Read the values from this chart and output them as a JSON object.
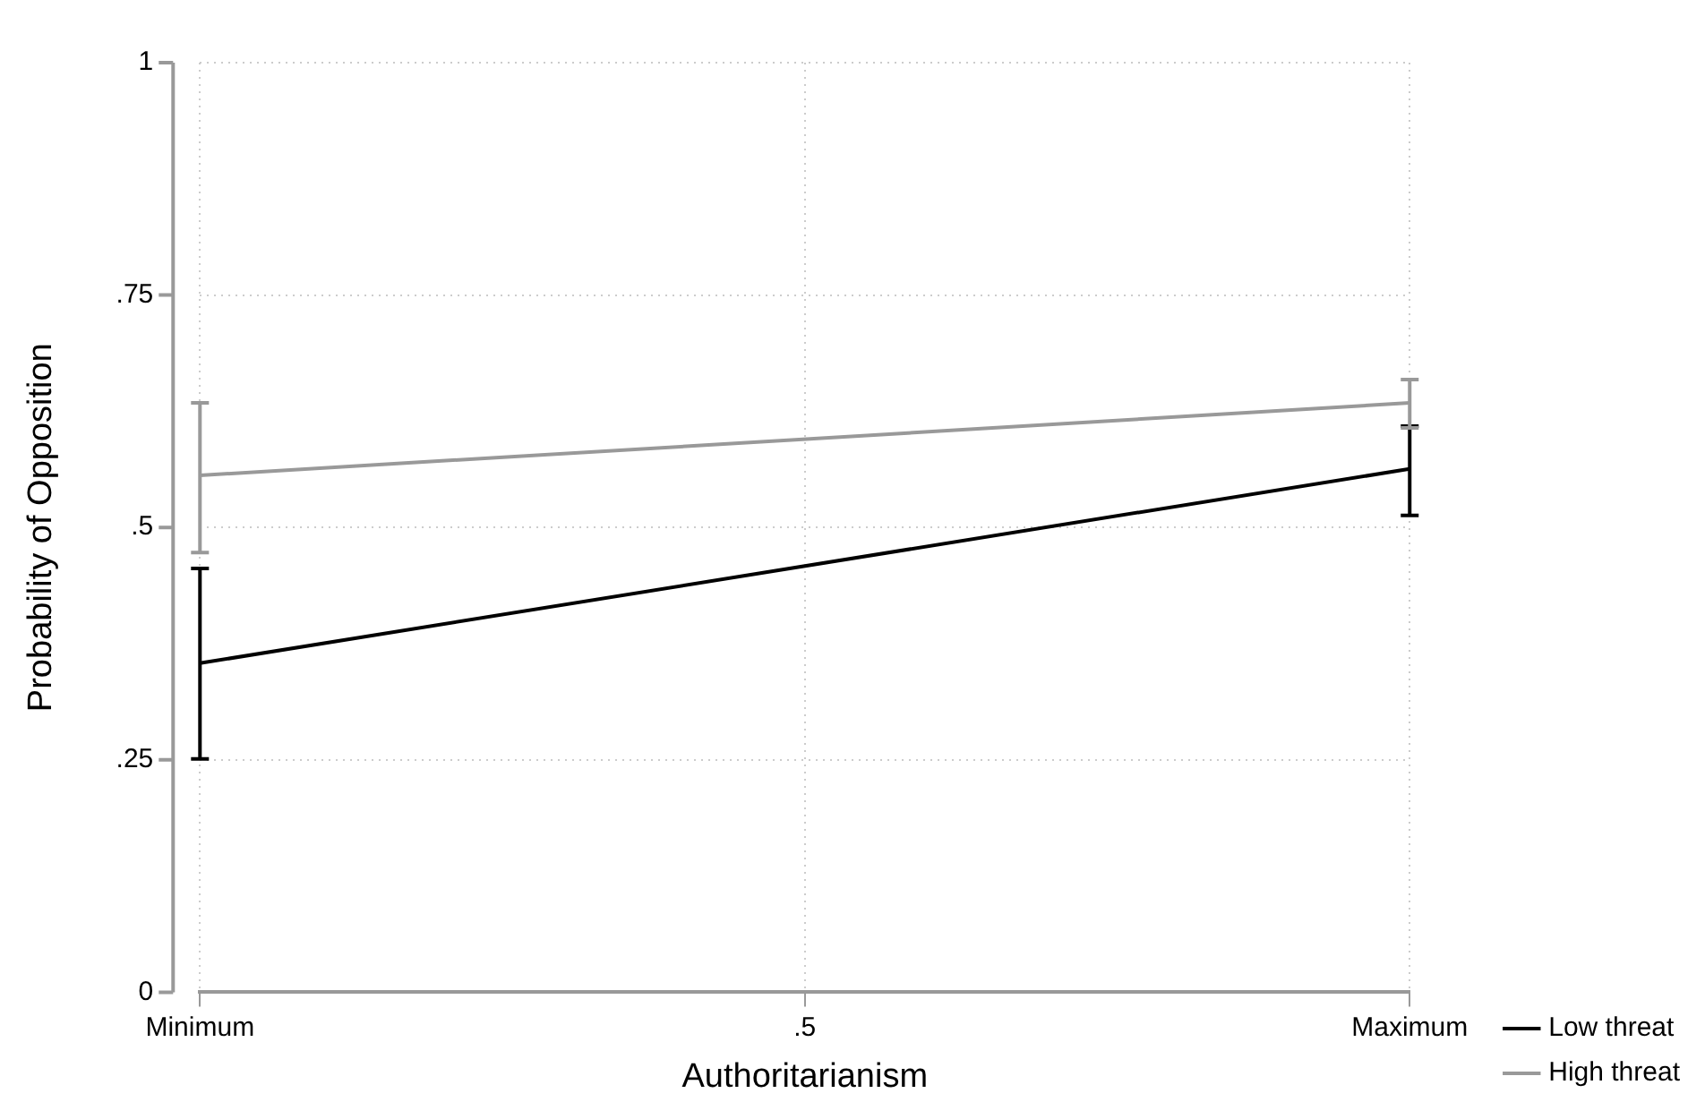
{
  "chart_data": {
    "type": "line",
    "xlabel": "Authoritarianism",
    "ylabel": "Probability of Opposition",
    "categories": [
      "Minimum",
      ".5",
      "Maximum"
    ],
    "series": [
      {
        "name": "Low threat",
        "color": "#000000",
        "values": [
          0.354,
          null,
          0.563
        ],
        "errors": [
          [
            0.251,
            0.456
          ],
          null,
          [
            0.513,
            0.609
          ]
        ]
      },
      {
        "name": "High threat",
        "color": "#999999",
        "values": [
          0.556,
          null,
          0.634
        ],
        "errors": [
          [
            0.473,
            0.634
          ],
          null,
          [
            0.607,
            0.659
          ]
        ]
      }
    ],
    "ylim": [
      0,
      1
    ],
    "yticks": [
      0,
      {
        "value": 0.25,
        "label": ".25"
      },
      {
        "value": 0.5,
        "label": ".5"
      },
      {
        "value": 0.75,
        "label": ".75"
      },
      1
    ],
    "grid": true,
    "legend": "bottom right",
    "marker": "none",
    "line_style": "solid"
  }
}
